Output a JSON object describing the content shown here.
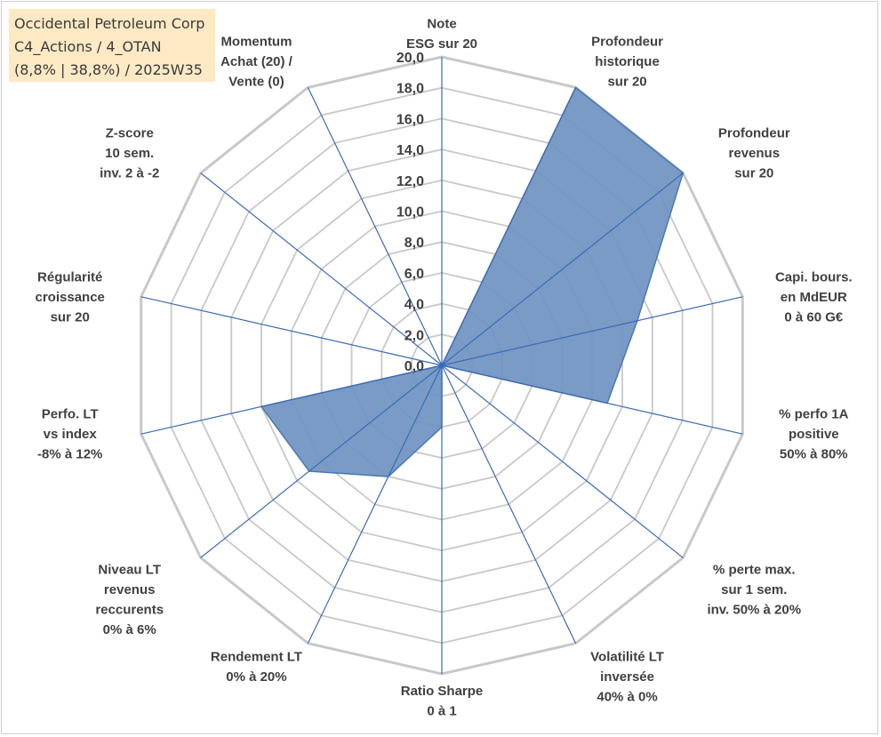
{
  "title_lines": [
    "Occidental Petroleum Corp",
    "C4_Actions / 4_OTAN",
    "(8,8% | 38,8%) / 2025W35"
  ],
  "chart_data": {
    "type": "radar",
    "rmax": 20,
    "tick_labels": [
      "0,0",
      "2,0",
      "4,0",
      "6,0",
      "8,0",
      "10,0",
      "12,0",
      "14,0",
      "16,0",
      "18,0",
      "20,0"
    ],
    "axes": [
      {
        "label": [
          "Note",
          "ESG sur 20"
        ],
        "value": 0
      },
      {
        "label": [
          "Profondeur",
          "historique",
          "sur 20"
        ],
        "value": 20
      },
      {
        "label": [
          "Profondeur",
          "revenus",
          "sur 20"
        ],
        "value": 20
      },
      {
        "label": [
          "Capi. bours.",
          "en MdEUR",
          "0 à 60 G€"
        ],
        "value": 13
      },
      {
        "label": [
          "% perfo 1A",
          "positive",
          "50% à 80%"
        ],
        "value": 11
      },
      {
        "label": [
          "% perte max.",
          "sur 1 sem.",
          "inv. 50% à 20%"
        ],
        "value": 0
      },
      {
        "label": [
          "Volatilité LT",
          "inversée",
          "40% à 0%"
        ],
        "value": 0
      },
      {
        "label": [
          "Ratio Sharpe",
          "0 à 1"
        ],
        "value": 4
      },
      {
        "label": [
          "Rendement LT",
          "0% à 20%"
        ],
        "value": 8
      },
      {
        "label": [
          "Niveau LT",
          "revenus",
          "reccurents",
          "0% à 6%"
        ],
        "value": 11
      },
      {
        "label": [
          "Perfo. LT",
          "vs index",
          "-8% à 12%"
        ],
        "value": 12
      },
      {
        "label": [
          "Régularité",
          "croissance",
          "sur 20"
        ],
        "value": 0
      },
      {
        "label": [
          "Z-score",
          "10 sem.",
          "inv. 2 à -2"
        ],
        "value": 0
      },
      {
        "label": [
          "Momentum",
          "Achat (20) /",
          "Vente (0)"
        ],
        "value": 0
      }
    ],
    "series": [
      {
        "color": "#4a78b5",
        "fill": "#6e93c0"
      }
    ],
    "grid_color": "#c8c8c8",
    "spoke_color": "#3c6ab8"
  }
}
